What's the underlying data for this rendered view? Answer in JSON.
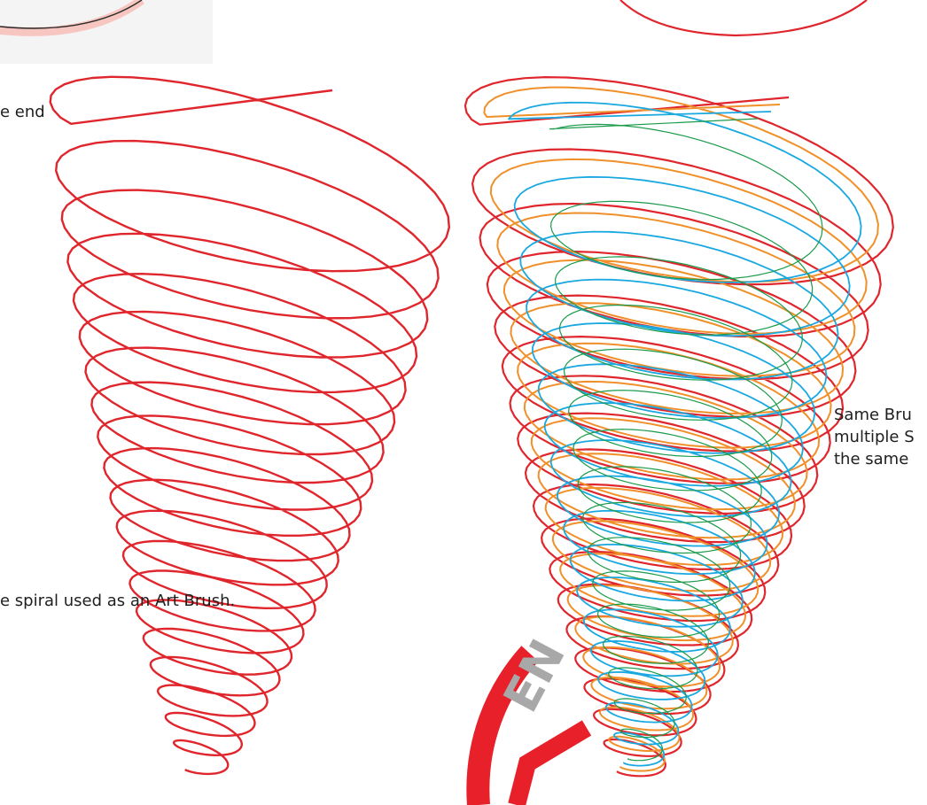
{
  "captions": {
    "top_left": "e end",
    "art_brush": "e spiral used as an Art Brush.",
    "right": [
      "Same Bru",
      "multiple S",
      "the same"
    ]
  },
  "logo": {
    "letters": "EN",
    "colors": {
      "red": "#e8202a",
      "grey": "#a8a8a8"
    }
  },
  "spirals": {
    "left": {
      "colors": [
        "#e0262d"
      ]
    },
    "right": {
      "colors": [
        "#e0262d",
        "#f0902a",
        "#1aa8e0",
        "#1a9a4a"
      ]
    }
  },
  "colors": {
    "background": "#ffffff",
    "text": "#1e1e1e",
    "red": "#e0262d",
    "orange": "#f0902a",
    "blue": "#1aa8e0",
    "green": "#1a9a4a"
  }
}
